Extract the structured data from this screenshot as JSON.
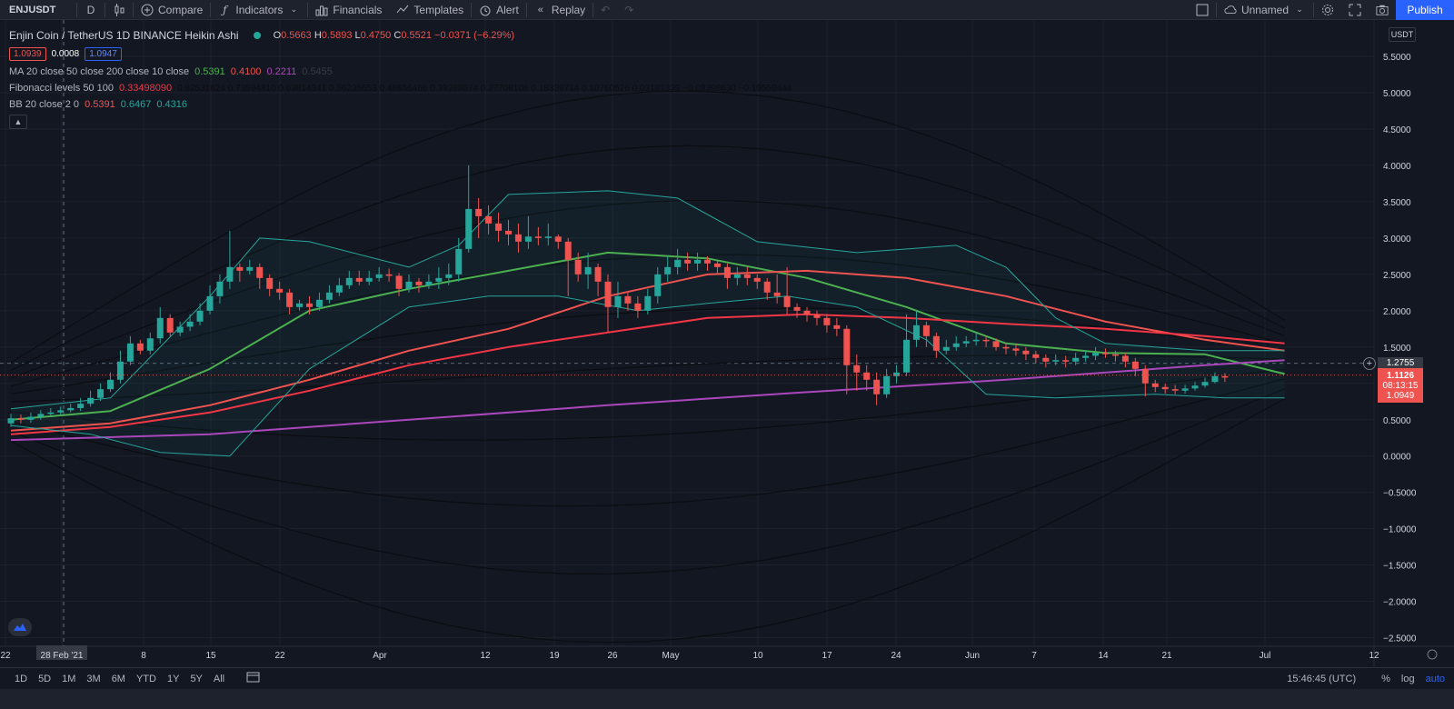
{
  "toolbar": {
    "symbol": "ENJUSDT",
    "interval": "D",
    "compare": "Compare",
    "indicators": "Indicators",
    "financials": "Financials",
    "templates": "Templates",
    "alert": "Alert",
    "replay": "Replay",
    "layout_name": "Unnamed",
    "publish": "Publish"
  },
  "legend": {
    "title": "Enjin Coin / TetherUS  1D  BINANCE  Heikin Ashi",
    "o_label": "O",
    "o_val": "0.5663",
    "h_label": "H",
    "h_val": "0.5893",
    "l_label": "L",
    "l_val": "0.4750",
    "c_label": "C",
    "c_val": "0.5521",
    "change": "−0.0371 (−6.29%)",
    "bid": "1.0939",
    "spread": "0.0008",
    "ask": "1.0947",
    "ma": {
      "name": "MA 20 close 50 close 200 close 10 close",
      "v1": "0.5391",
      "v2": "0.4100",
      "v3": "0.2211",
      "v4": "0.5455"
    },
    "fib": {
      "name": "Fibonacci levels 50 100",
      "v1": "0.33498090",
      "rest": "0.82531624  0.73594810  0.63814341  0.56235653  0.48656466  0.39288074  0.27708106  0.18339714  0.10760526  0.03181339  −0.08398630  −0.19559444"
    },
    "bb": {
      "name": "BB 20 close 2 0",
      "v1": "0.5391",
      "v2": "0.6467",
      "v3": "0.4316"
    }
  },
  "price_axis": {
    "currency": "USDT",
    "ticks": [
      "5.5000",
      "5.0000",
      "4.5000",
      "4.0000",
      "3.5000",
      "3.0000",
      "2.5000",
      "2.0000",
      "1.5000",
      "1.0000",
      "0.5000",
      "0.0000",
      "−0.5000",
      "−1.0000",
      "−1.5000",
      "−2.0000",
      "−2.5000"
    ],
    "crosshair_price": "1.2755",
    "last_price": "1.1126",
    "countdown": "08:13:15",
    "bid_price": "1.0949"
  },
  "time_axis": {
    "labels": [
      "22",
      "28 Feb '21",
      "8",
      "15",
      "22",
      "Apr",
      "12",
      "19",
      "26",
      "May",
      "10",
      "17",
      "24",
      "Jun",
      "7",
      "14",
      "21",
      "Jul",
      "12"
    ]
  },
  "bottom": {
    "timeframes": [
      "1D",
      "5D",
      "1M",
      "3M",
      "6M",
      "YTD",
      "1Y",
      "5Y",
      "All"
    ],
    "clock": "15:46:45 (UTC)",
    "percent": "%",
    "log": "log",
    "auto": "auto"
  },
  "colors": {
    "background": "#131722",
    "up": "#26a69a",
    "down": "#ef5350",
    "ma20": "#4caf50",
    "ma50": "#ef5350",
    "ma200": "#ab47bc",
    "ma10_red": "#f23645",
    "bb": "#26a69a",
    "accent": "#2962ff"
  },
  "chart_data": {
    "type": "candlestick",
    "title": "Enjin Coin / TetherUS  1D  BINANCE  Heikin Ashi",
    "ylim": [
      -2.5,
      5.5
    ],
    "grid": true,
    "candles": [
      {
        "o": 0.45,
        "c": 0.52,
        "h": 0.58,
        "l": 0.4
      },
      {
        "o": 0.52,
        "c": 0.5,
        "h": 0.57,
        "l": 0.45
      },
      {
        "o": 0.5,
        "c": 0.54,
        "h": 0.6,
        "l": 0.46
      },
      {
        "o": 0.54,
        "c": 0.58,
        "h": 0.63,
        "l": 0.5
      },
      {
        "o": 0.58,
        "c": 0.6,
        "h": 0.66,
        "l": 0.54
      },
      {
        "o": 0.6,
        "c": 0.63,
        "h": 0.68,
        "l": 0.56
      },
      {
        "o": 0.63,
        "c": 0.66,
        "h": 0.72,
        "l": 0.6
      },
      {
        "o": 0.66,
        "c": 0.72,
        "h": 0.8,
        "l": 0.62
      },
      {
        "o": 0.72,
        "c": 0.8,
        "h": 0.9,
        "l": 0.68
      },
      {
        "o": 0.8,
        "c": 0.92,
        "h": 1.0,
        "l": 0.76
      },
      {
        "o": 0.92,
        "c": 1.05,
        "h": 1.15,
        "l": 0.88
      },
      {
        "o": 1.05,
        "c": 1.3,
        "h": 1.45,
        "l": 1.0
      },
      {
        "o": 1.3,
        "c": 1.55,
        "h": 1.65,
        "l": 1.25
      },
      {
        "o": 1.55,
        "c": 1.45,
        "h": 1.6,
        "l": 1.4
      },
      {
        "o": 1.45,
        "c": 1.62,
        "h": 1.7,
        "l": 1.4
      },
      {
        "o": 1.62,
        "c": 1.9,
        "h": 2.05,
        "l": 1.55
      },
      {
        "o": 1.9,
        "c": 1.7,
        "h": 1.95,
        "l": 1.65
      },
      {
        "o": 1.7,
        "c": 1.78,
        "h": 1.85,
        "l": 1.65
      },
      {
        "o": 1.78,
        "c": 1.85,
        "h": 1.95,
        "l": 1.72
      },
      {
        "o": 1.85,
        "c": 2.0,
        "h": 2.1,
        "l": 1.8
      },
      {
        "o": 2.0,
        "c": 2.2,
        "h": 2.35,
        "l": 1.95
      },
      {
        "o": 2.2,
        "c": 2.4,
        "h": 2.5,
        "l": 2.1
      },
      {
        "o": 2.4,
        "c": 2.6,
        "h": 3.1,
        "l": 2.3
      },
      {
        "o": 2.6,
        "c": 2.55,
        "h": 2.65,
        "l": 2.4
      },
      {
        "o": 2.55,
        "c": 2.6,
        "h": 2.7,
        "l": 2.5
      },
      {
        "o": 2.6,
        "c": 2.45,
        "h": 2.65,
        "l": 2.3
      },
      {
        "o": 2.45,
        "c": 2.3,
        "h": 2.5,
        "l": 2.2
      },
      {
        "o": 2.3,
        "c": 2.25,
        "h": 2.4,
        "l": 2.15
      },
      {
        "o": 2.25,
        "c": 2.05,
        "h": 2.3,
        "l": 1.95
      },
      {
        "o": 2.05,
        "c": 2.1,
        "h": 2.15,
        "l": 2.0
      },
      {
        "o": 2.1,
        "c": 2.05,
        "h": 2.2,
        "l": 1.95
      },
      {
        "o": 2.05,
        "c": 2.15,
        "h": 2.25,
        "l": 2.0
      },
      {
        "o": 2.15,
        "c": 2.25,
        "h": 2.35,
        "l": 2.1
      },
      {
        "o": 2.25,
        "c": 2.35,
        "h": 2.45,
        "l": 2.2
      },
      {
        "o": 2.35,
        "c": 2.45,
        "h": 2.55,
        "l": 2.3
      },
      {
        "o": 2.45,
        "c": 2.4,
        "h": 2.55,
        "l": 2.35
      },
      {
        "o": 2.4,
        "c": 2.45,
        "h": 2.55,
        "l": 2.35
      },
      {
        "o": 2.45,
        "c": 2.5,
        "h": 2.6,
        "l": 2.4
      },
      {
        "o": 2.5,
        "c": 2.48,
        "h": 2.58,
        "l": 2.4
      },
      {
        "o": 2.48,
        "c": 2.3,
        "h": 2.52,
        "l": 2.2
      },
      {
        "o": 2.3,
        "c": 2.4,
        "h": 2.5,
        "l": 2.25
      },
      {
        "o": 2.4,
        "c": 2.35,
        "h": 2.45,
        "l": 2.25
      },
      {
        "o": 2.35,
        "c": 2.4,
        "h": 2.5,
        "l": 2.3
      },
      {
        "o": 2.4,
        "c": 2.45,
        "h": 2.6,
        "l": 2.3
      },
      {
        "o": 2.45,
        "c": 2.5,
        "h": 2.65,
        "l": 2.35
      },
      {
        "o": 2.5,
        "c": 2.85,
        "h": 3.0,
        "l": 2.4
      },
      {
        "o": 2.85,
        "c": 3.4,
        "h": 4.0,
        "l": 2.8
      },
      {
        "o": 3.4,
        "c": 3.3,
        "h": 3.55,
        "l": 3.0
      },
      {
        "o": 3.3,
        "c": 3.2,
        "h": 3.45,
        "l": 3.05
      },
      {
        "o": 3.2,
        "c": 3.1,
        "h": 3.35,
        "l": 2.95
      },
      {
        "o": 3.1,
        "c": 3.05,
        "h": 3.25,
        "l": 2.9
      },
      {
        "o": 3.05,
        "c": 2.95,
        "h": 3.2,
        "l": 2.8
      },
      {
        "o": 2.95,
        "c": 3.02,
        "h": 3.3,
        "l": 2.85
      },
      {
        "o": 3.02,
        "c": 3.0,
        "h": 3.15,
        "l": 2.9
      },
      {
        "o": 3.0,
        "c": 3.02,
        "h": 3.2,
        "l": 2.9
      },
      {
        "o": 3.02,
        "c": 2.95,
        "h": 3.05,
        "l": 2.85
      },
      {
        "o": 2.95,
        "c": 2.7,
        "h": 3.0,
        "l": 2.2
      },
      {
        "o": 2.7,
        "c": 2.5,
        "h": 2.8,
        "l": 2.4
      },
      {
        "o": 2.5,
        "c": 2.6,
        "h": 2.8,
        "l": 2.3
      },
      {
        "o": 2.6,
        "c": 2.4,
        "h": 2.65,
        "l": 2.2
      },
      {
        "o": 2.4,
        "c": 2.05,
        "h": 2.5,
        "l": 1.7
      },
      {
        "o": 2.05,
        "c": 2.2,
        "h": 2.4,
        "l": 1.9
      },
      {
        "o": 2.2,
        "c": 2.1,
        "h": 2.25,
        "l": 2.0
      },
      {
        "o": 2.1,
        "c": 2.0,
        "h": 2.2,
        "l": 1.9
      },
      {
        "o": 2.0,
        "c": 2.2,
        "h": 2.3,
        "l": 1.95
      },
      {
        "o": 2.2,
        "c": 2.5,
        "h": 2.6,
        "l": 2.1
      },
      {
        "o": 2.5,
        "c": 2.6,
        "h": 2.75,
        "l": 2.4
      },
      {
        "o": 2.6,
        "c": 2.7,
        "h": 2.85,
        "l": 2.5
      },
      {
        "o": 2.7,
        "c": 2.65,
        "h": 2.8,
        "l": 2.55
      },
      {
        "o": 2.65,
        "c": 2.7,
        "h": 2.8,
        "l": 2.55
      },
      {
        "o": 2.7,
        "c": 2.65,
        "h": 2.75,
        "l": 2.55
      },
      {
        "o": 2.65,
        "c": 2.6,
        "h": 2.7,
        "l": 2.5
      },
      {
        "o": 2.6,
        "c": 2.45,
        "h": 2.65,
        "l": 2.3
      },
      {
        "o": 2.45,
        "c": 2.5,
        "h": 2.6,
        "l": 2.35
      },
      {
        "o": 2.5,
        "c": 2.45,
        "h": 2.6,
        "l": 2.35
      },
      {
        "o": 2.45,
        "c": 2.4,
        "h": 2.5,
        "l": 2.3
      },
      {
        "o": 2.4,
        "c": 2.25,
        "h": 2.45,
        "l": 2.15
      },
      {
        "o": 2.25,
        "c": 2.2,
        "h": 2.5,
        "l": 2.1
      },
      {
        "o": 2.2,
        "c": 2.05,
        "h": 2.6,
        "l": 1.95
      },
      {
        "o": 2.05,
        "c": 2.0,
        "h": 2.1,
        "l": 1.9
      },
      {
        "o": 2.0,
        "c": 1.95,
        "h": 2.05,
        "l": 1.85
      },
      {
        "o": 1.95,
        "c": 1.9,
        "h": 2.0,
        "l": 1.8
      },
      {
        "o": 1.9,
        "c": 1.8,
        "h": 1.95,
        "l": 1.7
      },
      {
        "o": 1.8,
        "c": 1.75,
        "h": 1.9,
        "l": 1.65
      },
      {
        "o": 1.75,
        "c": 1.25,
        "h": 1.8,
        "l": 0.85
      },
      {
        "o": 1.25,
        "c": 1.15,
        "h": 1.4,
        "l": 0.9
      },
      {
        "o": 1.15,
        "c": 1.05,
        "h": 1.25,
        "l": 0.9
      },
      {
        "o": 1.05,
        "c": 0.85,
        "h": 1.15,
        "l": 0.7
      },
      {
        "o": 0.85,
        "c": 1.1,
        "h": 1.2,
        "l": 0.8
      },
      {
        "o": 1.1,
        "c": 1.15,
        "h": 1.25,
        "l": 1.0
      },
      {
        "o": 1.15,
        "c": 1.6,
        "h": 1.95,
        "l": 1.1
      },
      {
        "o": 1.6,
        "c": 1.8,
        "h": 2.0,
        "l": 1.5
      },
      {
        "o": 1.8,
        "c": 1.65,
        "h": 1.85,
        "l": 1.5
      },
      {
        "o": 1.65,
        "c": 1.45,
        "h": 1.7,
        "l": 1.35
      },
      {
        "o": 1.45,
        "c": 1.5,
        "h": 1.6,
        "l": 1.4
      },
      {
        "o": 1.5,
        "c": 1.55,
        "h": 1.65,
        "l": 1.45
      },
      {
        "o": 1.55,
        "c": 1.58,
        "h": 1.65,
        "l": 1.5
      },
      {
        "o": 1.58,
        "c": 1.6,
        "h": 1.7,
        "l": 1.52
      },
      {
        "o": 1.6,
        "c": 1.58,
        "h": 1.65,
        "l": 1.5
      },
      {
        "o": 1.58,
        "c": 1.5,
        "h": 1.62,
        "l": 1.45
      },
      {
        "o": 1.5,
        "c": 1.48,
        "h": 1.55,
        "l": 1.4
      },
      {
        "o": 1.48,
        "c": 1.45,
        "h": 1.55,
        "l": 1.38
      },
      {
        "o": 1.45,
        "c": 1.4,
        "h": 1.5,
        "l": 1.32
      },
      {
        "o": 1.4,
        "c": 1.35,
        "h": 1.45,
        "l": 1.28
      },
      {
        "o": 1.35,
        "c": 1.3,
        "h": 1.4,
        "l": 1.22
      },
      {
        "o": 1.3,
        "c": 1.32,
        "h": 1.4,
        "l": 1.25
      },
      {
        "o": 1.32,
        "c": 1.3,
        "h": 1.38,
        "l": 1.22
      },
      {
        "o": 1.3,
        "c": 1.35,
        "h": 1.42,
        "l": 1.25
      },
      {
        "o": 1.35,
        "c": 1.38,
        "h": 1.45,
        "l": 1.3
      },
      {
        "o": 1.38,
        "c": 1.42,
        "h": 1.5,
        "l": 1.32
      },
      {
        "o": 1.42,
        "c": 1.4,
        "h": 1.48,
        "l": 1.35
      },
      {
        "o": 1.4,
        "c": 1.38,
        "h": 1.45,
        "l": 1.3
      },
      {
        "o": 1.38,
        "c": 1.3,
        "h": 1.42,
        "l": 1.22
      },
      {
        "o": 1.3,
        "c": 1.2,
        "h": 1.35,
        "l": 1.1
      },
      {
        "o": 1.2,
        "c": 1.0,
        "h": 1.25,
        "l": 0.82
      },
      {
        "o": 1.0,
        "c": 0.95,
        "h": 1.05,
        "l": 0.88
      },
      {
        "o": 0.95,
        "c": 0.92,
        "h": 1.0,
        "l": 0.86
      },
      {
        "o": 0.92,
        "c": 0.9,
        "h": 0.98,
        "l": 0.85
      },
      {
        "o": 0.9,
        "c": 0.93,
        "h": 0.98,
        "l": 0.86
      },
      {
        "o": 0.93,
        "c": 0.97,
        "h": 1.02,
        "l": 0.9
      },
      {
        "o": 0.97,
        "c": 1.02,
        "h": 1.08,
        "l": 0.94
      },
      {
        "o": 1.02,
        "c": 1.1,
        "h": 1.15,
        "l": 1.0
      },
      {
        "o": 1.1,
        "c": 1.08,
        "h": 1.14,
        "l": 1.02
      }
    ],
    "series": [
      {
        "name": "MA 20",
        "color": "#4caf50",
        "points": [
          [
            0,
            0.5
          ],
          [
            10,
            0.62
          ],
          [
            20,
            1.2
          ],
          [
            30,
            2.0
          ],
          [
            40,
            2.3
          ],
          [
            50,
            2.55
          ],
          [
            60,
            2.8
          ],
          [
            70,
            2.72
          ],
          [
            80,
            2.45
          ],
          [
            90,
            2.05
          ],
          [
            100,
            1.55
          ],
          [
            110,
            1.42
          ],
          [
            120,
            1.4
          ],
          [
            128,
            1.13
          ]
        ]
      },
      {
        "name": "MA 50",
        "color": "#ef5350",
        "points": [
          [
            0,
            0.35
          ],
          [
            10,
            0.45
          ],
          [
            20,
            0.7
          ],
          [
            30,
            1.05
          ],
          [
            40,
            1.45
          ],
          [
            50,
            1.75
          ],
          [
            60,
            2.2
          ],
          [
            70,
            2.5
          ],
          [
            80,
            2.55
          ],
          [
            90,
            2.45
          ],
          [
            100,
            2.2
          ],
          [
            110,
            1.85
          ],
          [
            120,
            1.6
          ],
          [
            128,
            1.45
          ]
        ]
      },
      {
        "name": "MA 200",
        "color": "#ab47bc",
        "points": [
          [
            0,
            0.22
          ],
          [
            20,
            0.3
          ],
          [
            40,
            0.5
          ],
          [
            60,
            0.7
          ],
          [
            80,
            0.88
          ],
          [
            100,
            1.05
          ],
          [
            120,
            1.25
          ],
          [
            128,
            1.32
          ]
        ]
      },
      {
        "name": "MA 10",
        "color": "#f23645",
        "points": [
          [
            0,
            0.3
          ],
          [
            10,
            0.4
          ],
          [
            20,
            0.6
          ],
          [
            30,
            0.9
          ],
          [
            40,
            1.25
          ],
          [
            50,
            1.5
          ],
          [
            60,
            1.7
          ],
          [
            70,
            1.9
          ],
          [
            80,
            1.95
          ],
          [
            90,
            1.9
          ],
          [
            100,
            1.82
          ],
          [
            110,
            1.75
          ],
          [
            120,
            1.65
          ],
          [
            128,
            1.55
          ]
        ]
      },
      {
        "name": "BB upper",
        "color": "#26a69a",
        "points": [
          [
            0,
            0.65
          ],
          [
            10,
            0.8
          ],
          [
            20,
            2.2
          ],
          [
            25,
            3.0
          ],
          [
            30,
            2.95
          ],
          [
            40,
            2.6
          ],
          [
            45,
            2.9
          ],
          [
            50,
            3.6
          ],
          [
            60,
            3.65
          ],
          [
            67,
            3.55
          ],
          [
            75,
            2.95
          ],
          [
            85,
            2.8
          ],
          [
            95,
            2.9
          ],
          [
            100,
            2.6
          ],
          [
            105,
            1.9
          ],
          [
            110,
            1.55
          ],
          [
            120,
            1.45
          ],
          [
            128,
            1.45
          ]
        ]
      },
      {
        "name": "BB lower",
        "color": "#26a69a",
        "points": [
          [
            0,
            0.42
          ],
          [
            8,
            0.3
          ],
          [
            15,
            0.05
          ],
          [
            22,
            0.0
          ],
          [
            30,
            1.2
          ],
          [
            40,
            2.05
          ],
          [
            48,
            2.2
          ],
          [
            55,
            2.2
          ],
          [
            63,
            2.0
          ],
          [
            70,
            2.1
          ],
          [
            78,
            2.2
          ],
          [
            85,
            2.05
          ],
          [
            92,
            1.6
          ],
          [
            98,
            0.85
          ],
          [
            105,
            0.8
          ],
          [
            115,
            0.85
          ],
          [
            122,
            0.8
          ],
          [
            128,
            0.8
          ]
        ]
      }
    ]
  }
}
